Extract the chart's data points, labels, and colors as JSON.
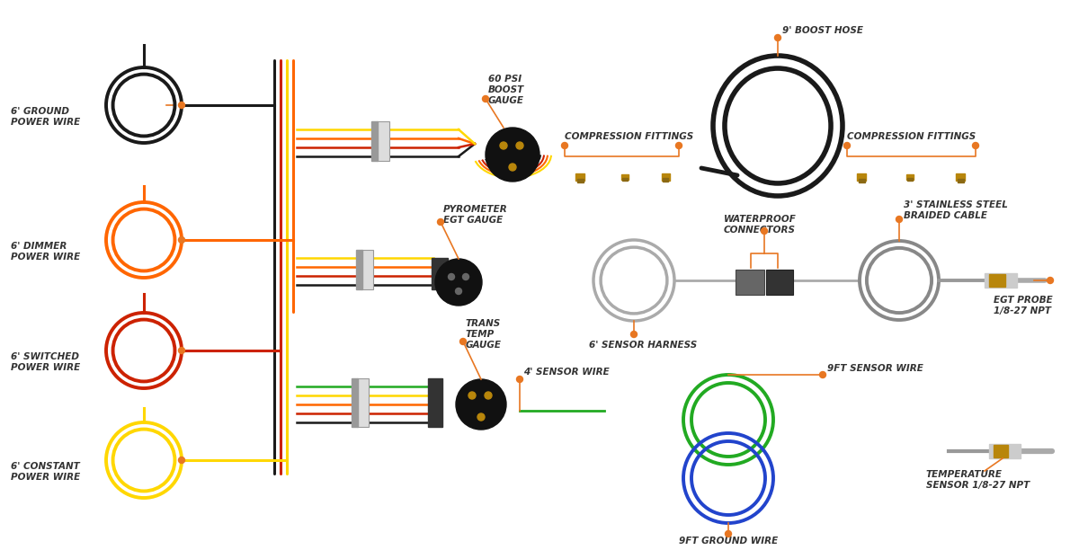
{
  "bg_color": "#ffffff",
  "accent_color": "#E87722",
  "wire_colors": {
    "black": "#1a1a1a",
    "red": "#CC2200",
    "orange": "#FF6600",
    "yellow": "#FFD700",
    "green": "#22AA22",
    "blue": "#2244CC",
    "gray": "#888888",
    "silver": "#aaaaaa"
  },
  "labels": {
    "ground_wire": "6' GROUND\nPOWER WIRE",
    "dimmer_wire": "6' DIMMER\nPOWER WIRE",
    "switched_wire": "6' SWITCHED\nPOWER WIRE",
    "constant_wire": "6' CONSTANT\nPOWER WIRE",
    "boost_gauge": "60 PSI\nBOOST\nGAUGE",
    "pyrometer": "PYROMETER\nEGT GAUGE",
    "trans_gauge": "TRANS\nTEMP\nGAUGE",
    "boost_hose": "9' BOOST HOSE",
    "comp_fittings1": "COMPRESSION FITTINGS",
    "comp_fittings2": "COMPRESSION FITTINGS",
    "waterproof": "WATERPROOF\nCONNECTORS",
    "braided": "3' STAINLESS STEEL\nBRAIDED CABLE",
    "egt_probe": "EGT PROBE\n1/8-27 NPT",
    "sensor_harness": "6' SENSOR HARNESS",
    "sensor_wire_4": "4' SENSOR WIRE",
    "sensor_wire_9": "9FT SENSOR WIRE",
    "ground_wire_9": "9FT GROUND WIRE",
    "temp_sensor": "TEMPERATURE\nSENSOR 1/8-27 NPT"
  },
  "font_size_label": 7.5
}
